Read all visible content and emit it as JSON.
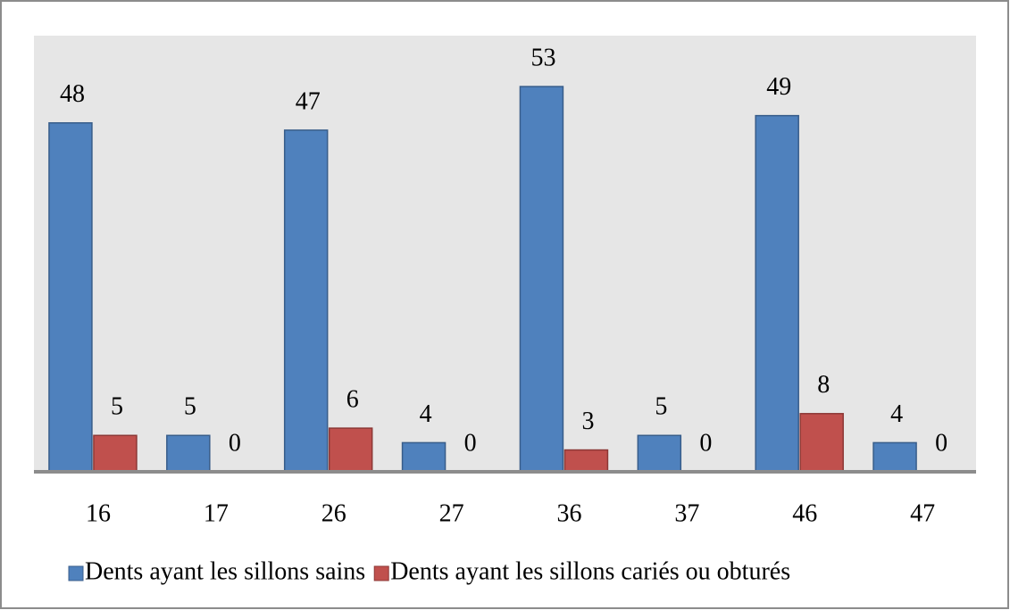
{
  "chart_data": {
    "type": "bar",
    "categories": [
      "16",
      "17",
      "26",
      "27",
      "36",
      "37",
      "46",
      "47"
    ],
    "series": [
      {
        "name": "Dents ayant les sillons sains",
        "color": "#4f81bd",
        "values": [
          48,
          5,
          47,
          4,
          53,
          5,
          49,
          4
        ]
      },
      {
        "name": "Dents ayant les sillons cariés ou obturés",
        "color": "#c0504d",
        "values": [
          5,
          0,
          6,
          0,
          3,
          0,
          8,
          0
        ]
      }
    ],
    "ylim": [
      0,
      60
    ],
    "legend": "bottom"
  }
}
